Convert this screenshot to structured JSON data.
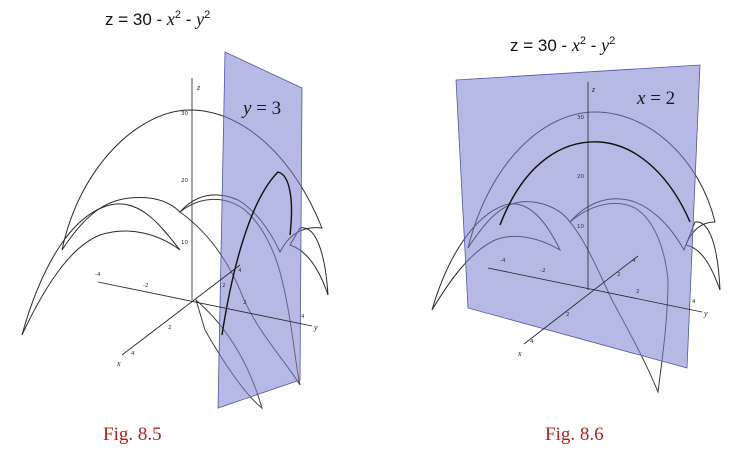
{
  "figures": [
    {
      "formula": {
        "z": "z = 30 - ",
        "x": "x",
        "x_exp": "2",
        "mid": " - ",
        "y": "y",
        "y_exp": "2"
      },
      "plane_label": {
        "var": "y",
        "eq": " = ",
        "val": "3"
      },
      "z_ticks": [
        "30",
        "20",
        "10"
      ],
      "x_ticks": [
        "4",
        "2",
        "2",
        "4"
      ],
      "y_ticks": [
        "-4",
        "-2",
        "2",
        "4"
      ],
      "axis_names": {
        "x": "x",
        "y": "y",
        "z": "z"
      },
      "caption": "Fig. 8.5"
    },
    {
      "formula": {
        "z": "z = 30 - ",
        "x": "x",
        "x_exp": "2",
        "mid": " - ",
        "y": "y",
        "y_exp": "2"
      },
      "plane_label": {
        "var": "x",
        "eq": " = ",
        "val": "2"
      },
      "z_ticks": [
        "30",
        "20",
        "10"
      ],
      "x_ticks": [
        "4",
        "2",
        "2",
        "4"
      ],
      "y_ticks": [
        "-4",
        "-2",
        "2",
        "4"
      ],
      "axis_names": {
        "x": "x",
        "y": "y",
        "z": "z"
      },
      "caption": "Fig. 8.6"
    }
  ],
  "colors": {
    "surface_top": "#8c88d6",
    "surface_mid": "#c98e9c",
    "surface_bottom": "#f0c8b4",
    "plane": "#7b7fd0",
    "caption": "#b22020"
  }
}
